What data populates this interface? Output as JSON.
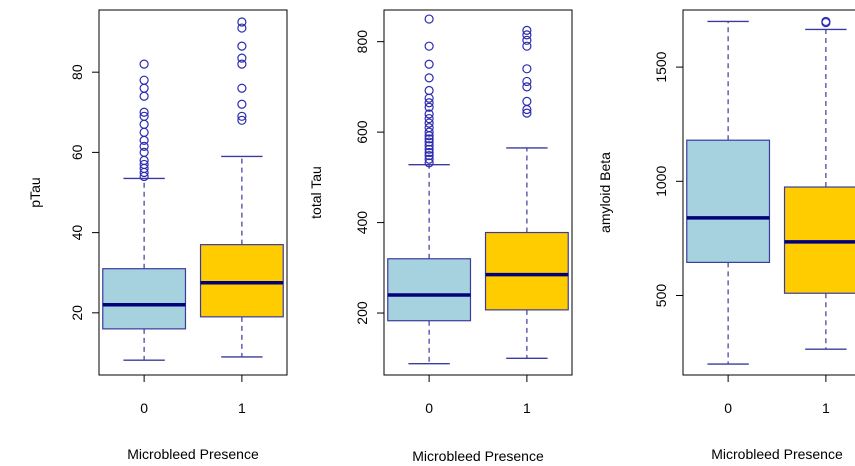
{
  "colors": {
    "box_fill": [
      "#a6d1df",
      "#ffcc00"
    ],
    "box_stroke": "#3b3b9e",
    "median": "#00007a",
    "whisker": "#3b3b9e",
    "outlier": "#2b2bb0",
    "axis": "#000000"
  },
  "chart_data": [
    {
      "type": "boxplot",
      "xlabel": "Microbleed Presence",
      "ylabel": "pTau",
      "categories": [
        "0",
        "1"
      ],
      "ylim": [
        4.5,
        95.5
      ],
      "yticks": [
        20,
        40,
        60,
        80
      ],
      "grid": false,
      "boxes": [
        {
          "category": "0",
          "whisker_low": 8.2,
          "q1": 16.0,
          "median": 22.0,
          "q3": 31.0,
          "whisker_high": 53.5,
          "outliers": [
            54.0,
            55.0,
            56.0,
            57.0,
            58.0,
            60.0,
            61.5,
            63.0,
            65.0,
            67.0,
            69.0,
            70.0,
            74.0,
            76.0,
            78.0,
            82.0
          ]
        },
        {
          "category": "1",
          "whisker_low": 9.0,
          "q1": 19.0,
          "median": 27.5,
          "q3": 37.0,
          "whisker_high": 59.0,
          "outliers": [
            68.0,
            69.0,
            72.0,
            76.0,
            82.0,
            83.5,
            86.5,
            91.0,
            92.5
          ]
        }
      ]
    },
    {
      "type": "boxplot",
      "xlabel": "Microbleed Presence",
      "ylabel": "total Tau",
      "categories": [
        "0",
        "1"
      ],
      "ylim": [
        63,
        870
      ],
      "yticks": [
        200,
        400,
        600,
        800
      ],
      "grid": false,
      "boxes": [
        {
          "category": "0",
          "whisker_low": 88,
          "q1": 183,
          "median": 240,
          "q3": 320,
          "whisker_high": 528,
          "outliers": [
            532,
            540,
            548,
            555,
            562,
            570,
            578,
            585,
            592,
            600,
            610,
            620,
            630,
            640,
            655,
            665,
            675,
            692,
            720,
            750,
            790,
            850
          ]
        },
        {
          "category": "1",
          "whisker_low": 100,
          "q1": 207,
          "median": 285,
          "q3": 378,
          "whisker_high": 565,
          "outliers": [
            642,
            650,
            668,
            700,
            712,
            740,
            790,
            803,
            815,
            825
          ]
        }
      ]
    },
    {
      "type": "boxplot",
      "xlabel": "Microbleed Presence",
      "ylabel": "amyloid Beta",
      "categories": [
        "0",
        "1"
      ],
      "ylim": [
        152,
        1750
      ],
      "yticks": [
        500,
        1000,
        1500
      ],
      "grid": false,
      "boxes": [
        {
          "category": "0",
          "whisker_low": 200,
          "q1": 645,
          "median": 840,
          "q3": 1180,
          "whisker_high": 1700,
          "outliers": []
        },
        {
          "category": "1",
          "whisker_low": 265,
          "q1": 510,
          "median": 735,
          "q3": 975,
          "whisker_high": 1665,
          "outliers": [
            1695,
            1700
          ]
        }
      ]
    }
  ]
}
